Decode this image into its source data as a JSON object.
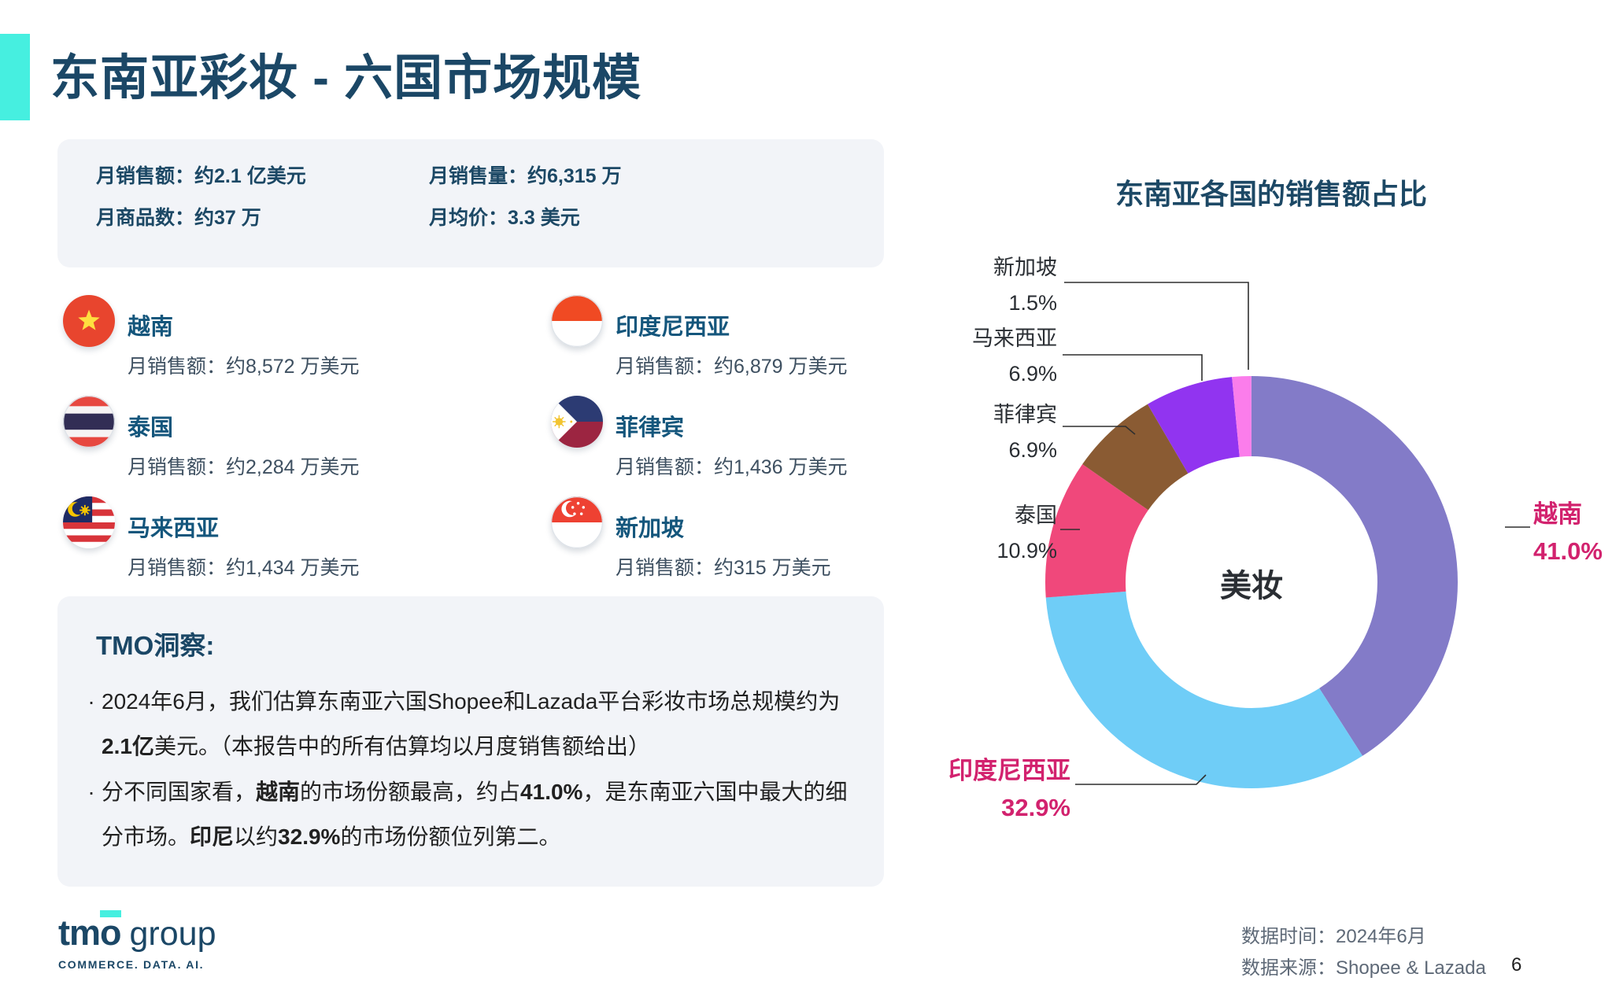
{
  "page": {
    "title": "东南亚彩妆 - 六国市场规模",
    "page_number": "6"
  },
  "stats": {
    "items": [
      "月销售额：约2.1 亿美元",
      "月销售量：约6,315 万",
      "月商品数：约37 万",
      "月均价：3.3 美元"
    ]
  },
  "countries": [
    {
      "name": "越南",
      "detail": "月销售额：约8,572 万美元"
    },
    {
      "name": "印度尼西亚",
      "detail": "月销售额：约6,879 万美元"
    },
    {
      "name": "泰国",
      "detail": "月销售额：约2,284 万美元"
    },
    {
      "name": "菲律宾",
      "detail": "月销售额：约1,436 万美元"
    },
    {
      "name": "马来西亚",
      "detail": "月销售额：约1,434 万美元"
    },
    {
      "name": "新加坡",
      "detail": "月销售额：约315 万美元"
    }
  ],
  "insights": {
    "heading": "TMO洞察:",
    "bullets": [
      [
        {
          "t": "2024年6月，我们估算东南亚六国Shopee和Lazada平台彩妆市场总规模约为"
        },
        {
          "br": true
        },
        {
          "t": "2.1亿",
          "b": true
        },
        {
          "t": "美元。（本报告中的所有估算均以月度销售额给出）"
        }
      ],
      [
        {
          "t": "分不同国家看，"
        },
        {
          "t": "越南",
          "b": true
        },
        {
          "t": "的市场份额最高，约占"
        },
        {
          "t": "41.0%",
          "b": true
        },
        {
          "t": "，是东南亚六国中最大的细"
        },
        {
          "br": true
        },
        {
          "t": "分市场。"
        },
        {
          "t": "印尼",
          "b": true
        },
        {
          "t": "以约"
        },
        {
          "t": "32.9%",
          "b": true
        },
        {
          "t": "的市场份额位列第二。"
        }
      ]
    ]
  },
  "chart_data": {
    "type": "donut",
    "title": "东南亚各国的销售额占比",
    "center_label": "美妆",
    "legend_position": "callout-labels",
    "slices": [
      {
        "label": "越南",
        "pct": "41.0%",
        "value": 41.0,
        "color": "#837BC8",
        "highlight": true
      },
      {
        "label": "印度尼西亚",
        "pct": "32.9%",
        "value": 32.9,
        "color": "#6FCDF7",
        "highlight": true
      },
      {
        "label": "泰国",
        "pct": "10.9%",
        "value": 10.9,
        "color": "#F0487B",
        "highlight": false
      },
      {
        "label": "菲律宾",
        "pct": "6.9%",
        "value": 6.9,
        "color": "#8A5B33",
        "highlight": false
      },
      {
        "label": "马来西亚",
        "pct": "6.9%",
        "value": 6.9,
        "color": "#9134F0",
        "highlight": false
      },
      {
        "label": "新加坡",
        "pct": "1.5%",
        "value": 1.5,
        "color": "#FB7DEB",
        "highlight": false
      }
    ]
  },
  "footer": {
    "brand": "tmo",
    "brand_suffix": "group",
    "tagline": "COMMERCE. DATA. AI.",
    "data_time": "数据时间：2024年6月",
    "data_source": "数据来源：Shopee & Lazada"
  },
  "colors": {
    "accent": "#46EFE0",
    "navy": "#1B4766",
    "pink": "#D2226E"
  }
}
